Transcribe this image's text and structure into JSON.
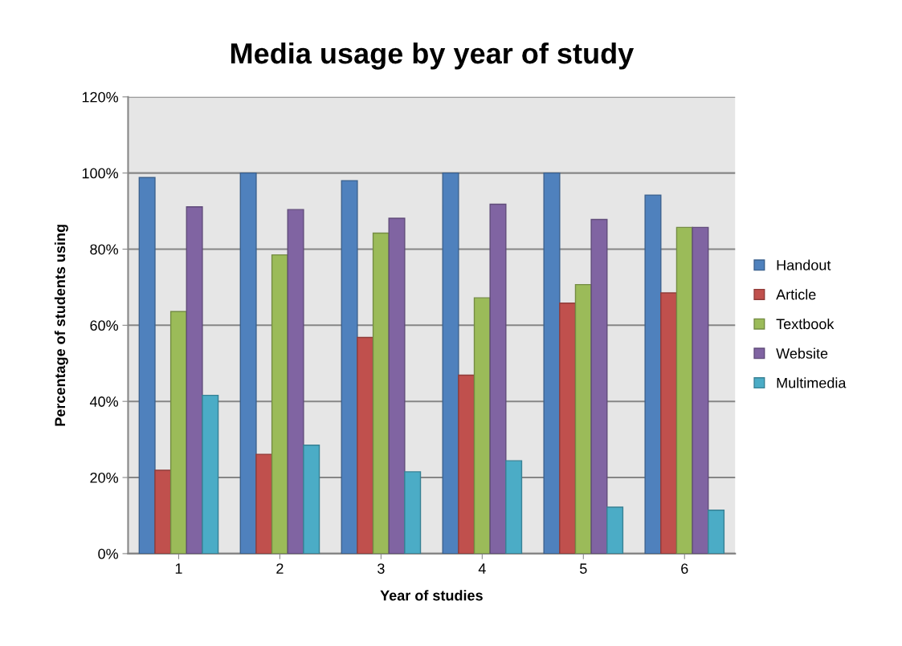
{
  "chart_data": {
    "type": "bar",
    "title": "Media usage by year of study",
    "xlabel": "Year of studies",
    "ylabel": "Percentage of students using",
    "categories": [
      "1",
      "2",
      "3",
      "4",
      "5",
      "6"
    ],
    "series": [
      {
        "name": "Handout",
        "color": "#4f81bd",
        "values": [
          98.8,
          100,
          98.0,
          100,
          100,
          94.2
        ]
      },
      {
        "name": "Article",
        "color": "#c0504d",
        "values": [
          21.9,
          26.1,
          56.8,
          46.9,
          65.8,
          68.5
        ]
      },
      {
        "name": "Textbook",
        "color": "#9bbb59",
        "values": [
          63.6,
          78.5,
          84.2,
          67.2,
          70.7,
          85.7
        ]
      },
      {
        "name": "Website",
        "color": "#8064a2",
        "values": [
          91.1,
          90.4,
          88.1,
          91.8,
          87.8,
          85.7
        ]
      },
      {
        "name": "Multimedia",
        "color": "#4bacc6",
        "values": [
          41.6,
          28.5,
          21.5,
          24.4,
          12.2,
          11.4
        ]
      }
    ],
    "ylim": [
      0,
      120
    ],
    "yticks": [
      {
        "value": 0,
        "label": "0%"
      },
      {
        "value": 20,
        "label": "20%"
      },
      {
        "value": 40,
        "label": "40%"
      },
      {
        "value": 60,
        "label": "60%"
      },
      {
        "value": 80,
        "label": "80%"
      },
      {
        "value": 100,
        "label": "100%"
      },
      {
        "value": 120,
        "label": "120%"
      }
    ],
    "grid": "y",
    "legend": "right"
  }
}
